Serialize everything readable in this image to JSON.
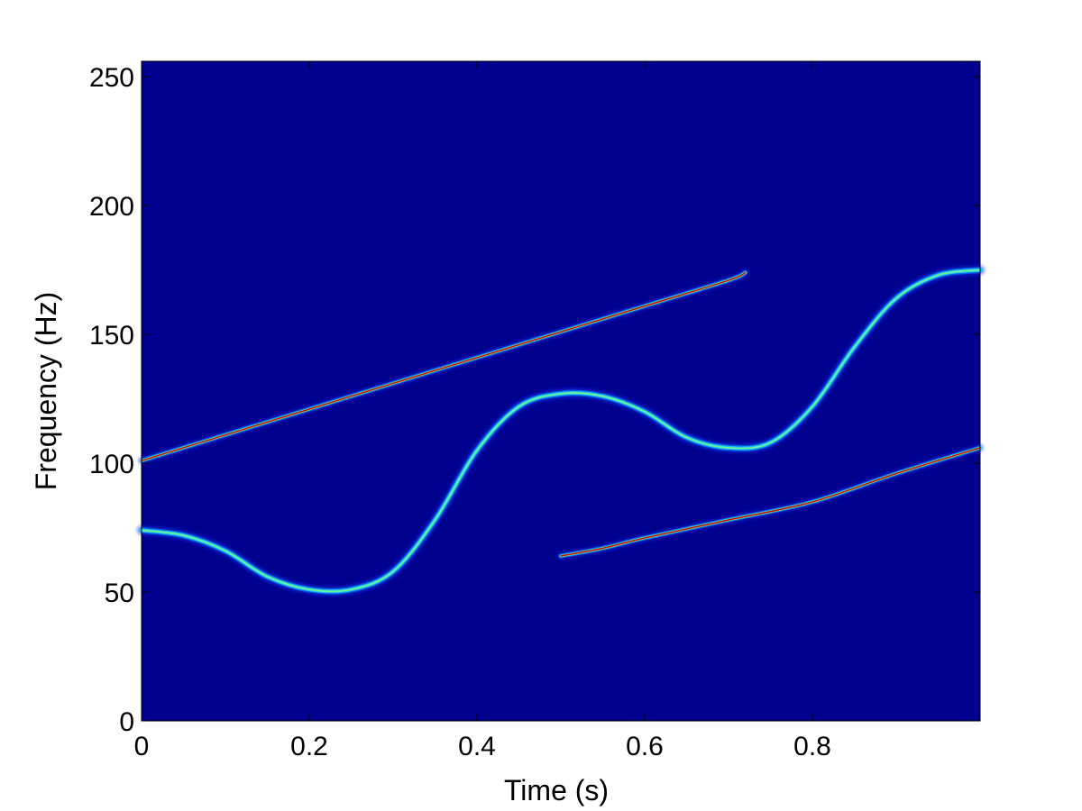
{
  "chart_data": {
    "type": "heatmap",
    "subtype": "time-frequency spectrogram",
    "xlabel": "Time (s)",
    "ylabel": "Frequency (Hz)",
    "xlim": [
      0,
      1
    ],
    "ylim": [
      0,
      256
    ],
    "x_ticks": [
      0,
      0.2,
      0.4,
      0.6,
      0.8
    ],
    "y_ticks": [
      0,
      50,
      100,
      150,
      200,
      250
    ],
    "x_tick_labels": [
      "0",
      "0.2",
      "0.4",
      "0.6",
      "0.8"
    ],
    "y_tick_labels": [
      "0",
      "50",
      "100",
      "150",
      "200",
      "250"
    ],
    "colormap": "jet",
    "background_color": "#00008f",
    "grid": false,
    "legend": "none",
    "components": [
      {
        "kind": "linear chirp",
        "t": [
          0.0,
          0.1,
          0.2,
          0.3,
          0.4,
          0.5,
          0.6,
          0.7,
          0.72
        ],
        "f": [
          101,
          111,
          121,
          131,
          141,
          151,
          161,
          171,
          174
        ],
        "peak_intensity": 1.0
      },
      {
        "kind": "sinusoidal FM",
        "t": [
          0.0,
          0.05,
          0.1,
          0.15,
          0.2,
          0.25,
          0.3,
          0.35,
          0.4,
          0.45,
          0.5,
          0.55,
          0.6,
          0.65,
          0.7,
          0.75,
          0.8,
          0.85,
          0.9,
          0.95,
          1.0
        ],
        "f": [
          74,
          72,
          66,
          56,
          51,
          51,
          58,
          78,
          105,
          122,
          127,
          126,
          120,
          110,
          106,
          108,
          122,
          145,
          164,
          173,
          175
        ],
        "peak_intensity": 0.6
      },
      {
        "kind": "linear chirp",
        "t": [
          0.5,
          0.55,
          0.6,
          0.7,
          0.8,
          0.9,
          1.0
        ],
        "f": [
          64,
          67,
          71,
          78,
          85,
          96,
          106
        ],
        "peak_intensity": 1.0
      }
    ]
  }
}
